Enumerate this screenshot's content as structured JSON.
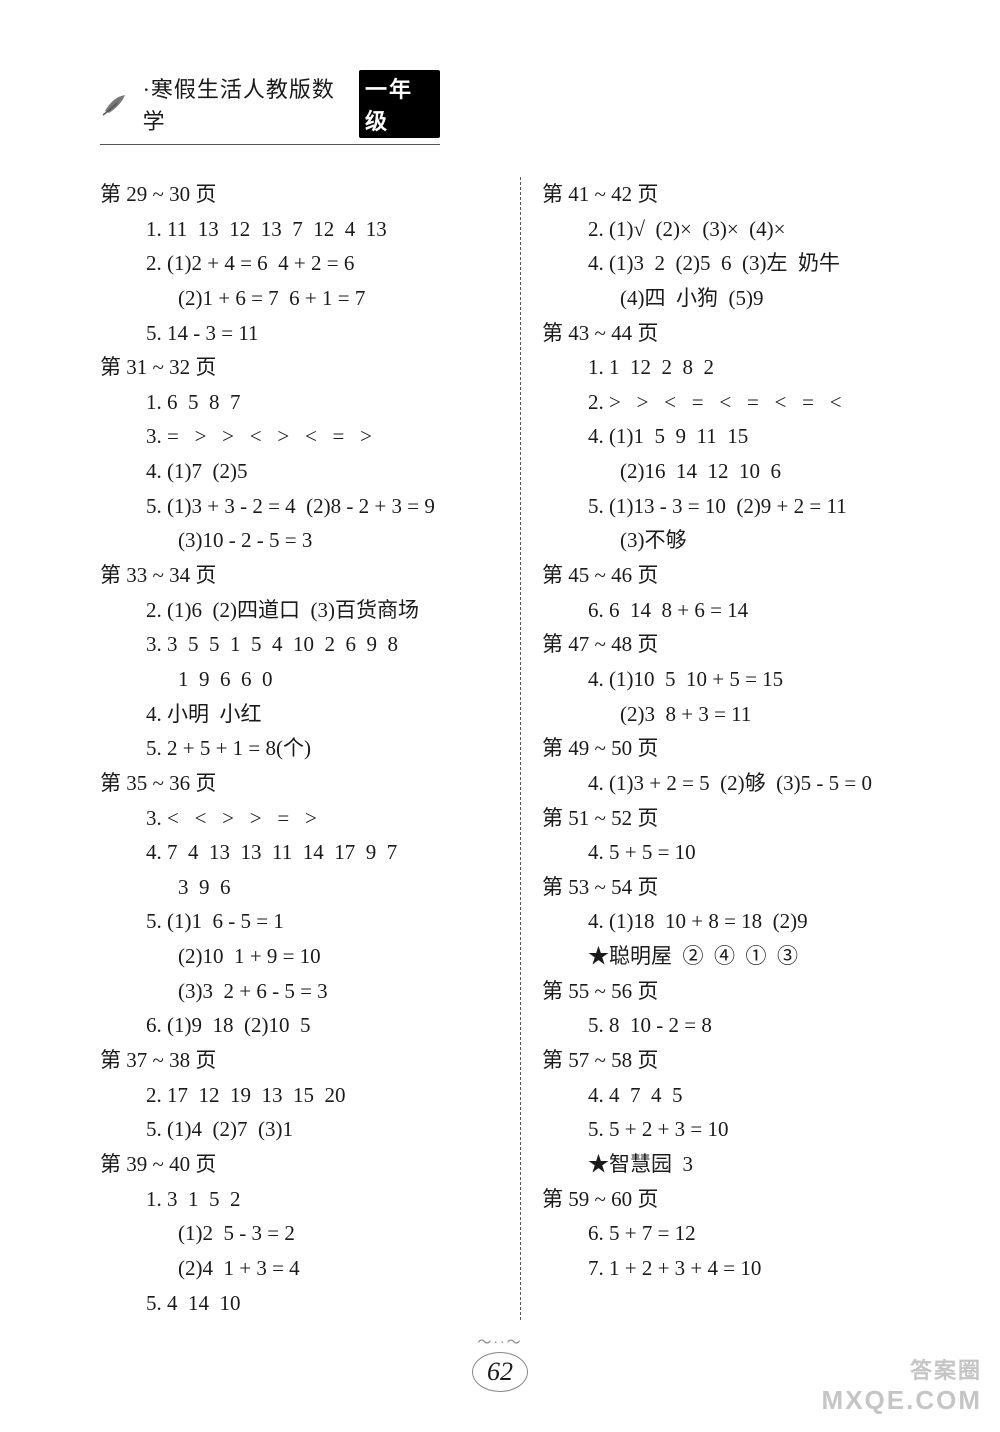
{
  "header": {
    "title": "·寒假生活人教版数学",
    "grade": "一年级"
  },
  "left_lines": [
    {
      "cls": "sec-title",
      "t": "第 29 ~ 30 页"
    },
    {
      "cls": "line",
      "t": "1. 11  13  12  13  7  12  4  13"
    },
    {
      "cls": "line",
      "t": "2. (1)2 + 4 = 6  4 + 2 = 6"
    },
    {
      "cls": "line2",
      "t": "(2)1 + 6 = 7  6 + 1 = 7"
    },
    {
      "cls": "line",
      "t": "5. 14 - 3 = 11"
    },
    {
      "cls": "sec-title",
      "t": "第 31 ~ 32 页"
    },
    {
      "cls": "line",
      "t": "1. 6  5  8  7"
    },
    {
      "cls": "line",
      "t": "3. =   >   >   <   >   <   =   >"
    },
    {
      "cls": "line",
      "t": "4. (1)7  (2)5"
    },
    {
      "cls": "line",
      "t": "5. (1)3 + 3 - 2 = 4  (2)8 - 2 + 3 = 9"
    },
    {
      "cls": "line2",
      "t": "(3)10 - 2 - 5 = 3"
    },
    {
      "cls": "sec-title",
      "t": "第 33 ~ 34 页"
    },
    {
      "cls": "line",
      "t": "2. (1)6  (2)四道口  (3)百货商场"
    },
    {
      "cls": "line",
      "t": "3. 3  5  5  1  5  4  10  2  6  9  8"
    },
    {
      "cls": "line2",
      "t": "1  9  6  6  0"
    },
    {
      "cls": "line",
      "t": "4. 小明  小红"
    },
    {
      "cls": "line",
      "t": "5. 2 + 5 + 1 = 8(个)"
    },
    {
      "cls": "sec-title",
      "t": "第 35 ~ 36 页"
    },
    {
      "cls": "line",
      "t": "3. <   <   >   >   =   >"
    },
    {
      "cls": "line",
      "t": "4. 7  4  13  13  11  14  17  9  7"
    },
    {
      "cls": "line2",
      "t": "3  9  6"
    },
    {
      "cls": "line",
      "t": "5. (1)1  6 - 5 = 1"
    },
    {
      "cls": "line2",
      "t": "(2)10  1 + 9 = 10"
    },
    {
      "cls": "line2",
      "t": "(3)3  2 + 6 - 5 = 3"
    },
    {
      "cls": "line",
      "t": "6. (1)9  18  (2)10  5"
    },
    {
      "cls": "sec-title",
      "t": "第 37 ~ 38 页"
    },
    {
      "cls": "line",
      "t": "2. 17  12  19  13  15  20"
    },
    {
      "cls": "line",
      "t": "5. (1)4  (2)7  (3)1"
    },
    {
      "cls": "sec-title",
      "t": "第 39 ~ 40 页"
    },
    {
      "cls": "line",
      "t": "1. 3  1  5  2"
    },
    {
      "cls": "line2",
      "t": "(1)2  5 - 3 = 2"
    },
    {
      "cls": "line2",
      "t": "(2)4  1 + 3 = 4"
    },
    {
      "cls": "line",
      "t": "5. 4  14  10"
    }
  ],
  "right_lines": [
    {
      "cls": "sec-title",
      "t": "第 41 ~ 42 页"
    },
    {
      "cls": "line",
      "t": "2. (1)√  (2)×  (3)×  (4)×"
    },
    {
      "cls": "line",
      "t": "4. (1)3  2  (2)5  6  (3)左  奶牛"
    },
    {
      "cls": "line2",
      "t": "(4)四  小狗  (5)9"
    },
    {
      "cls": "sec-title",
      "t": "第 43 ~ 44 页"
    },
    {
      "cls": "line",
      "t": "1. 1  12  2  8  2"
    },
    {
      "cls": "line",
      "t": "2. >   >   <   =   <   =   <   =   <"
    },
    {
      "cls": "line",
      "t": "4. (1)1  5  9  11  15"
    },
    {
      "cls": "line2",
      "t": "(2)16  14  12  10  6"
    },
    {
      "cls": "line",
      "t": "5. (1)13 - 3 = 10  (2)9 + 2 = 11"
    },
    {
      "cls": "line2",
      "t": "(3)不够"
    },
    {
      "cls": "sec-title",
      "t": "第 45 ~ 46 页"
    },
    {
      "cls": "line",
      "t": "6. 6  14  8 + 6 = 14"
    },
    {
      "cls": "sec-title",
      "t": "第 47 ~ 48 页"
    },
    {
      "cls": "line",
      "t": "4. (1)10  5  10 + 5 = 15"
    },
    {
      "cls": "line2",
      "t": "(2)3  8 + 3 = 11"
    },
    {
      "cls": "sec-title",
      "t": "第 49 ~ 50 页"
    },
    {
      "cls": "line",
      "t": "4. (1)3 + 2 = 5  (2)够  (3)5 - 5 = 0"
    },
    {
      "cls": "sec-title",
      "t": "第 51 ~ 52 页"
    },
    {
      "cls": "line",
      "t": "4. 5 + 5 = 10"
    },
    {
      "cls": "sec-title",
      "t": "第 53 ~ 54 页"
    },
    {
      "cls": "line",
      "t": "4. (1)18  10 + 8 = 18  (2)9"
    },
    {
      "cls": "line",
      "t": "★聪明屋  ②  ④  ①  ③"
    },
    {
      "cls": "sec-title",
      "t": "第 55 ~ 56 页"
    },
    {
      "cls": "line",
      "t": "5. 8  10 - 2 = 8"
    },
    {
      "cls": "sec-title",
      "t": "第 57 ~ 58 页"
    },
    {
      "cls": "line",
      "t": "4. 4  7  4  5"
    },
    {
      "cls": "line",
      "t": "5. 5 + 2 + 3 = 10"
    },
    {
      "cls": "line",
      "t": "★智慧园  3"
    },
    {
      "cls": "sec-title",
      "t": "第 59 ~ 60 页"
    },
    {
      "cls": "line",
      "t": "6. 5 + 7 = 12"
    },
    {
      "cls": "line",
      "t": "7. 1 + 2 + 3 + 4 = 10"
    }
  ],
  "page_number": "62",
  "watermark": {
    "line1": "答案圈",
    "line2": "MXQE.COM"
  }
}
